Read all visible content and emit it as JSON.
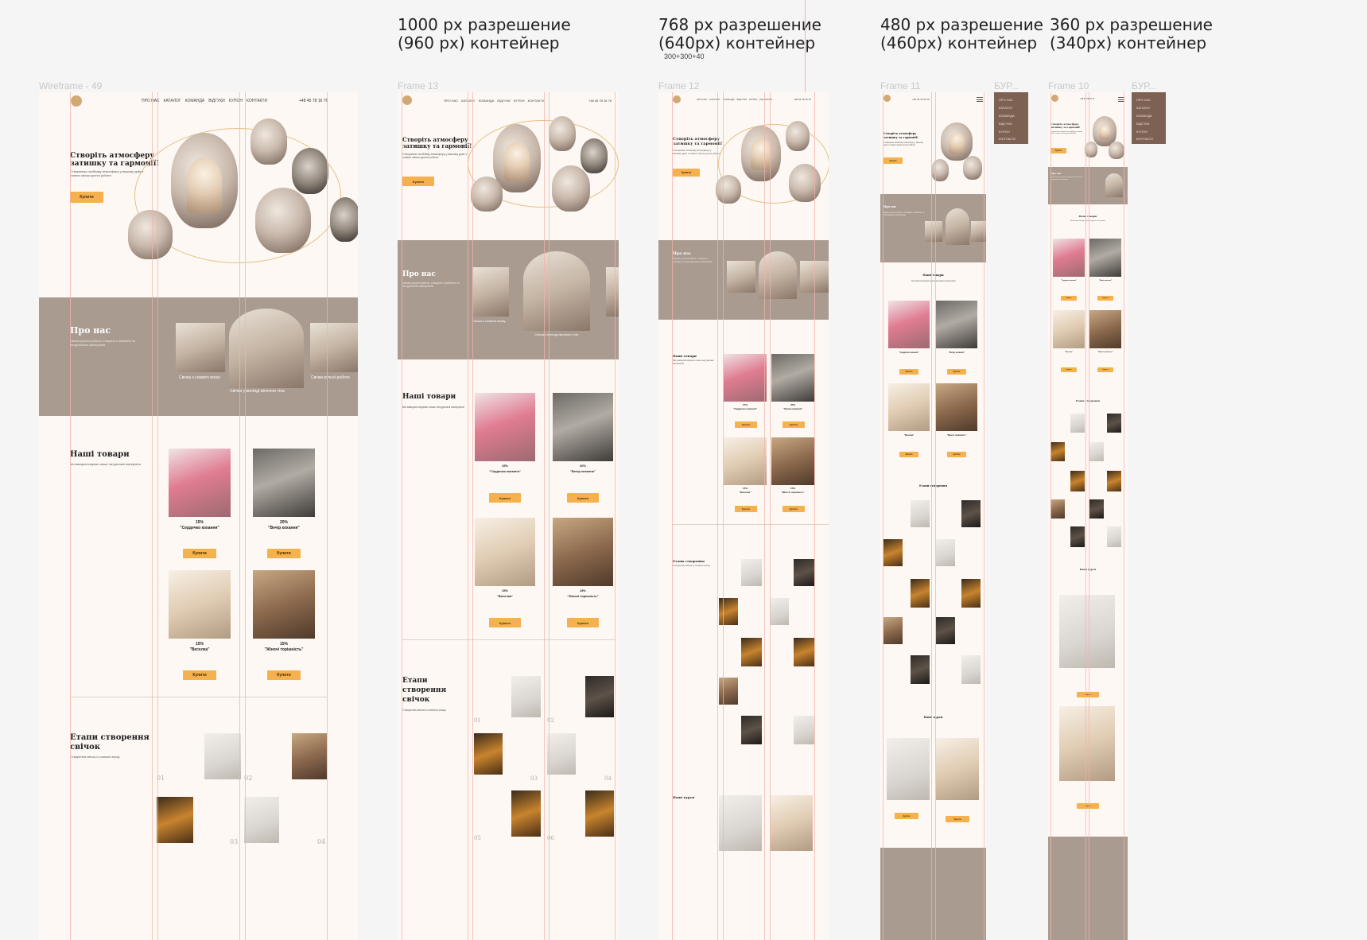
{
  "resolutions": [
    {
      "line1": "1000 px разрешение",
      "line2": "(960 px) контейнер"
    },
    {
      "line1": "768 px разрешение",
      "line2": "(640px) контейнер",
      "note": "300+300+40"
    },
    {
      "line1": "480 px разрешение",
      "line2": "(460px) контейнер"
    },
    {
      "line1": "360 px разрешение",
      "line2": "(340px) контейнер"
    }
  ],
  "frames": {
    "desktop": "Wireframe - 49",
    "f13": "Frame 13",
    "f12": "Frame 12",
    "f11": "Frame 11",
    "f10": "Frame 10",
    "burger_label_1": "БУР...",
    "burger_label_2": "БУР..."
  },
  "site": {
    "nav": [
      "ПРО НАС",
      "КАТАЛОГ",
      "КОМАНДА",
      "ВІДГУКИ",
      "КУПОН",
      "КОНТАКТИ"
    ],
    "phone": "+48 45 78 16 76",
    "hero_title_1": "Створіть атмосферу",
    "hero_title_2": "затишку та гармонії!",
    "hero_text": "Створюємо особливу атмосферу у вашому домі з соєвих свічок ручної роботи",
    "buy": "Купити",
    "about_title": "Про нас",
    "about_text": "Свічки ручної роботи, створені з любов'ю та натуральних матеріалів",
    "about_caption_1": "Свічка з соєвого воску",
    "about_caption_2": "Свічка у вигляді жіночого тіла",
    "about_caption_3": "Свічки ручної роботи",
    "products_title": "Наші товари",
    "products_text": "Ми використовуємо лише натуральні матеріали",
    "products": [
      {
        "pct": "15%",
        "name": "\"Сердечко кохання\""
      },
      {
        "pct": "20%",
        "name": "\"Вечір кохання\""
      },
      {
        "pct": "15%",
        "name": "\"Веселка\""
      },
      {
        "pct": "15%",
        "name": "\"Жіночі торішність\""
      }
    ],
    "steps_title_1": "Етапи створення",
    "steps_title_2": "свічок",
    "steps_title_a": "Етапи",
    "steps_title_b": "створення",
    "steps_title_c": "свічок",
    "steps_text": "Створення свічок із соєвого воску",
    "steps": [
      "01",
      "02",
      "03",
      "04",
      "05",
      "06"
    ],
    "courses_title": "Наші курси",
    "menu_items": [
      "ПРО НАС",
      "КАТАЛОГ",
      "КОМАНДА",
      "ВІДГУКИ",
      "КУПОН",
      "КОНТАКТИ"
    ]
  },
  "colors": {
    "page_bg": "#f5f5f5",
    "frame_bg": "#fdf8f3",
    "about_band": "#a99b90",
    "button": "#f4b14e",
    "grid_line": "#f3b2ab",
    "menu_bg": "#7d6152"
  }
}
